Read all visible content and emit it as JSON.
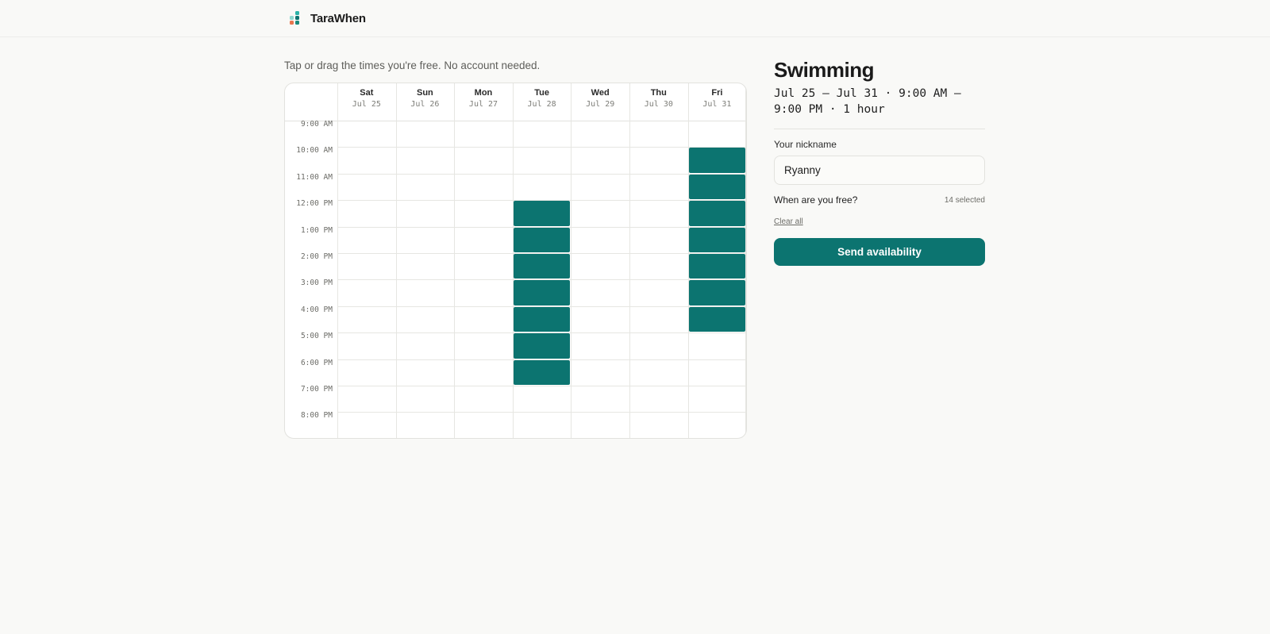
{
  "app": {
    "name": "TaraWhen",
    "logo_colors": [
      "#2bb3a8",
      "#0c7470",
      "#8fd8cf",
      "#e8764f",
      "#1a8a7d"
    ]
  },
  "hint": "Tap or drag the times you're free. No account needed.",
  "grid": {
    "days": [
      {
        "name": "Sat",
        "date": "Jul 25"
      },
      {
        "name": "Sun",
        "date": "Jul 26"
      },
      {
        "name": "Mon",
        "date": "Jul 27"
      },
      {
        "name": "Tue",
        "date": "Jul 28"
      },
      {
        "name": "Wed",
        "date": "Jul 29"
      },
      {
        "name": "Thu",
        "date": "Jul 30"
      },
      {
        "name": "Fri",
        "date": "Jul 31"
      }
    ],
    "times": [
      "9:00 AM",
      "10:00 AM",
      "11:00 AM",
      "12:00 PM",
      "1:00 PM",
      "2:00 PM",
      "3:00 PM",
      "4:00 PM",
      "5:00 PM",
      "6:00 PM",
      "7:00 PM",
      "8:00 PM"
    ],
    "selected": {
      "Tue": [
        "12:00 PM",
        "1:00 PM",
        "2:00 PM",
        "3:00 PM",
        "4:00 PM",
        "5:00 PM",
        "6:00 PM"
      ],
      "Fri": [
        "10:00 AM",
        "11:00 AM",
        "12:00 PM",
        "1:00 PM",
        "2:00 PM",
        "3:00 PM",
        "4:00 PM"
      ]
    },
    "selected_color": "#0c7470"
  },
  "event": {
    "title": "Swimming",
    "meta": "Jul 25 – Jul 31 · 9:00 AM – 9:00 PM · 1 hour"
  },
  "form": {
    "nickname_label": "Your nickname",
    "nickname_value": "Ryanny",
    "free_label": "When are you free?",
    "selected_count": "14 selected",
    "clear_all": "Clear all",
    "send_button": "Send availability"
  }
}
